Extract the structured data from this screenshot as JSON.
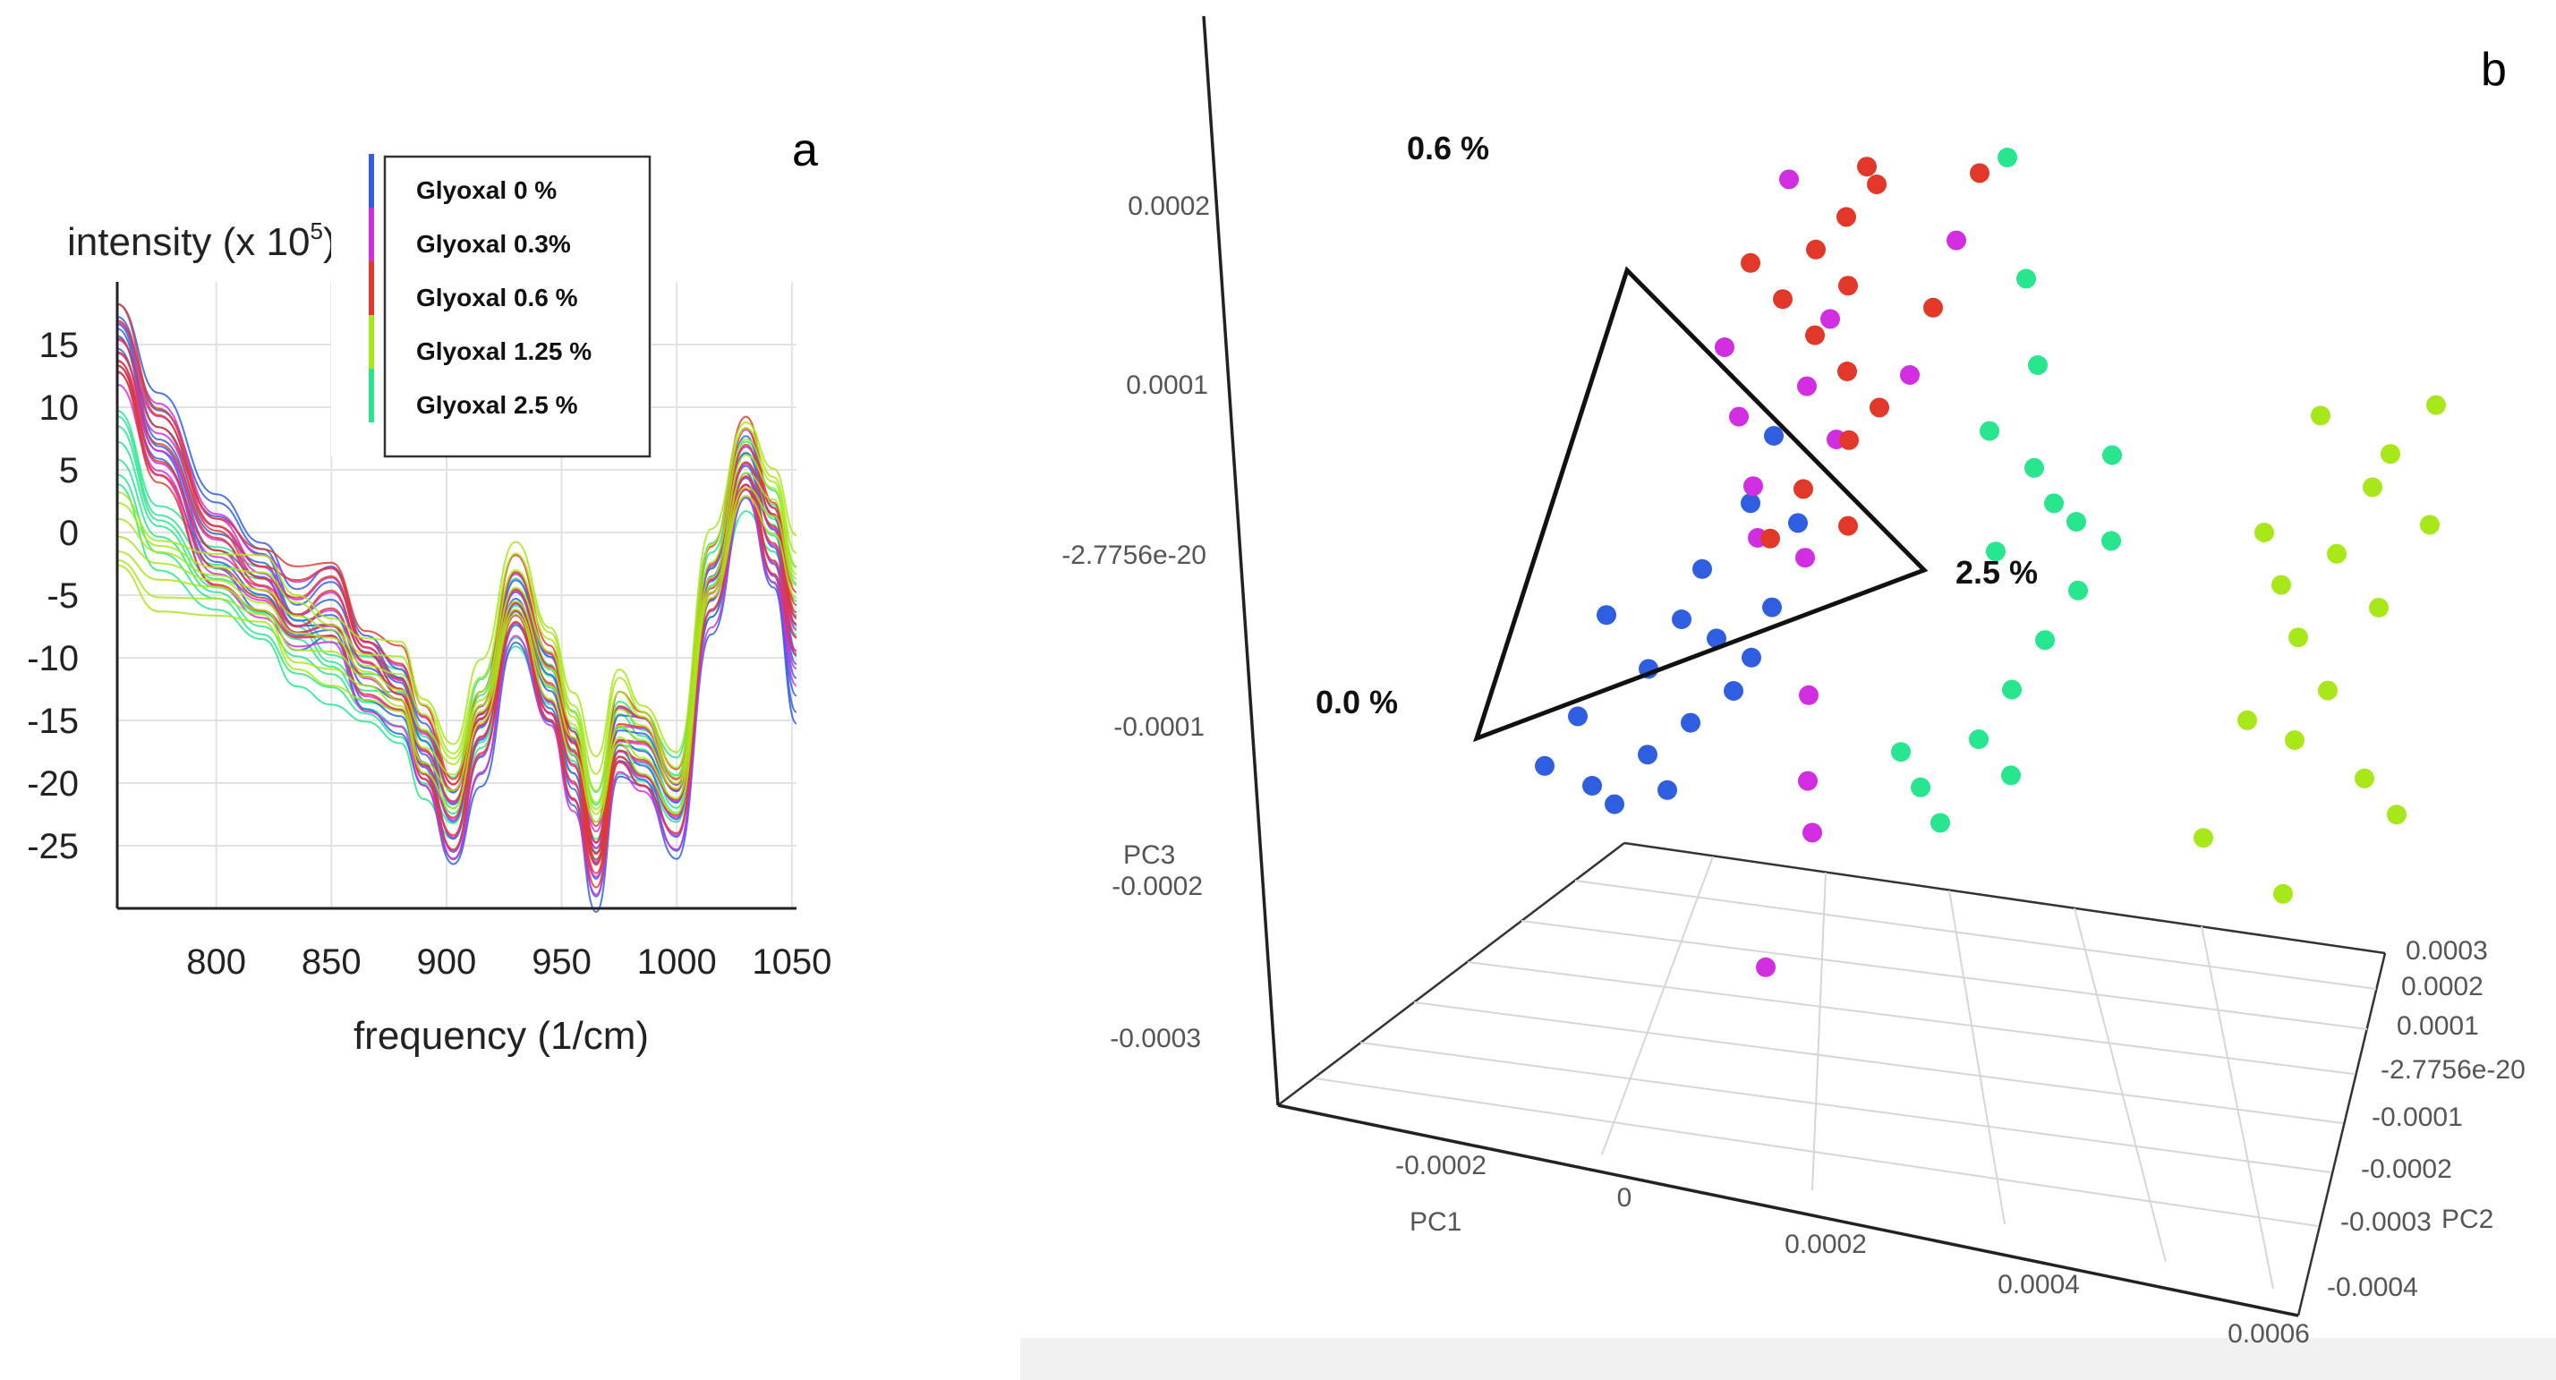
{
  "colors": {
    "glyoxal_0": "#2f5fe0",
    "glyoxal_03": "#d02ee0",
    "glyoxal_06": "#e2382a",
    "glyoxal_125": "#a8e81a",
    "glyoxal_25": "#27e68e"
  },
  "chart_data": [
    {
      "panel": "a",
      "type": "line",
      "ylabel_base": "intensity (x 10",
      "ylabel_exp": "5",
      "ylabel_tail": ")",
      "xlabel": "frequency (1/cm)",
      "xlim": [
        757,
        1052
      ],
      "ylim": [
        -30,
        20
      ],
      "xticks": [
        800,
        850,
        900,
        950,
        1000,
        1050
      ],
      "yticks": [
        15,
        10,
        5,
        0,
        -5,
        -10,
        -15,
        -20,
        -25
      ],
      "series": [
        {
          "name": "Glyoxal 0 %",
          "color_key": "glyoxal_0",
          "x": [
            757,
            775,
            800,
            820,
            835,
            850,
            865,
            880,
            890,
            903,
            915,
            930,
            945,
            955,
            965,
            975,
            985,
            1000,
            1015,
            1030,
            1042,
            1052
          ],
          "y": [
            16,
            8,
            0,
            -3,
            -7,
            -6,
            -11,
            -13,
            -18,
            -24,
            -17,
            -6,
            -13,
            -19,
            -27,
            -17,
            -18,
            -23,
            -5,
            5,
            -2,
            -12
          ]
        },
        {
          "name": "Glyoxal 0.3%",
          "color_key": "glyoxal_03",
          "x": [
            757,
            775,
            800,
            820,
            835,
            850,
            865,
            880,
            890,
            903,
            915,
            930,
            945,
            955,
            965,
            975,
            985,
            1000,
            1015,
            1030,
            1042,
            1052
          ],
          "y": [
            14,
            7,
            -1,
            -4,
            -7,
            -6,
            -11,
            -13,
            -18,
            -23,
            -16,
            -6,
            -13,
            -19,
            -26,
            -17,
            -18,
            -22,
            -5,
            5,
            -1,
            -9
          ]
        },
        {
          "name": "Glyoxal 0.6 %",
          "color_key": "glyoxal_06",
          "x": [
            757,
            775,
            800,
            820,
            835,
            850,
            865,
            880,
            890,
            903,
            915,
            930,
            945,
            955,
            965,
            975,
            985,
            1000,
            1015,
            1030,
            1042,
            1052
          ],
          "y": [
            15,
            7,
            -1,
            -4,
            -6,
            -5,
            -10,
            -12,
            -17,
            -22,
            -15,
            -5,
            -12,
            -18,
            -26,
            -16,
            -17,
            -21,
            -4,
            6,
            0,
            -7
          ]
        },
        {
          "name": "Glyoxal 1.25 %",
          "color_key": "glyoxal_125",
          "x": [
            757,
            775,
            800,
            820,
            835,
            850,
            865,
            880,
            890,
            903,
            915,
            930,
            945,
            955,
            965,
            975,
            985,
            1000,
            1015,
            1030,
            1042,
            1052
          ],
          "y": [
            0,
            -3,
            -4,
            -5,
            -8,
            -9,
            -11,
            -12,
            -16,
            -19,
            -13,
            -4,
            -10,
            -15,
            -21,
            -14,
            -16,
            -20,
            -3,
            6,
            3,
            -3
          ]
        },
        {
          "name": "Glyoxal 2.5 %",
          "color_key": "glyoxal_25",
          "x": [
            757,
            775,
            800,
            820,
            835,
            850,
            865,
            880,
            890,
            903,
            915,
            930,
            945,
            955,
            965,
            975,
            985,
            1000,
            1015,
            1030,
            1042,
            1052
          ],
          "y": [
            7,
            0,
            -4,
            -6,
            -9,
            -11,
            -13,
            -14,
            -18,
            -22,
            -15,
            -6,
            -12,
            -17,
            -24,
            -16,
            -17,
            -21,
            -4,
            5,
            1,
            -6
          ]
        }
      ],
      "legend": [
        "Glyoxal 0 %",
        "Glyoxal 0.3%",
        "Glyoxal 0.6 %",
        "Glyoxal 1.25 %",
        "Glyoxal 2.5 %"
      ]
    },
    {
      "panel": "b",
      "type": "scatter",
      "subtype": "3d-pca",
      "axes": {
        "x": "PC1",
        "y": "PC2",
        "z": "PC3"
      },
      "pc3_ticks": [
        "0.0002",
        "0.0001",
        "-2.7756e-20",
        "-0.0001",
        "-0.0002",
        "-0.0003"
      ],
      "pc1_ticks": [
        "-0.0002",
        "0",
        "0.0002",
        "0.0004",
        "0.0006"
      ],
      "pc2_ticks": [
        "0.0003",
        "0.0002",
        "0.0001",
        "-2.7756e-20",
        "-0.0001",
        "-0.0002",
        "-0.0003",
        "-0.0004"
      ],
      "triangle_labels": [
        "0.6 %",
        "2.5 %",
        "0.0 %"
      ],
      "groups": [
        {
          "name": "Glyoxal 0 %",
          "color_key": "glyoxal_0",
          "points": [
            [
              0.0,
              -0.00012
            ],
            [
              3e-05,
              -5e-05
            ],
            [
              5e-05,
              -2e-05
            ],
            [
              6e-05,
              1e-05
            ],
            [
              -2e-05,
              -8e-05
            ],
            [
              8e-05,
              -3e-05
            ],
            [
              0.0001,
              -6e-05
            ],
            [
              4e-05,
              -0.0001
            ],
            [
              0.00012,
              -1e-05
            ],
            [
              -4e-05,
              -0.00011
            ],
            [
              7e-05,
              -8e-05
            ],
            [
              0.00011,
              -4e-05
            ],
            [
              2e-05,
              -0.00013
            ],
            [
              0.00013,
              4e-05
            ],
            [
              9e-05,
              5e-05
            ],
            [
              -1e-05,
              -2e-05
            ],
            [
              6e-05,
              -0.00012
            ],
            [
              0.0001,
              9e-05
            ]
          ]
        },
        {
          "name": "Glyoxal 0.3%",
          "color_key": "glyoxal_03",
          "points": [
            [
              8e-05,
              0.00024
            ],
            [
              5e-05,
              0.00014
            ],
            [
              7e-05,
              0.0001
            ],
            [
              9e-05,
              6e-05
            ],
            [
              0.00012,
              0.00012
            ],
            [
              0.00013,
              0.00016
            ],
            [
              0.00015,
              9e-05
            ],
            [
              0.00014,
              2e-05
            ],
            [
              0.00016,
              -6e-05
            ],
            [
              0.00017,
              -0.00011
            ],
            [
              0.00018,
              -0.00014
            ],
            [
              0.0002,
              0.00013
            ],
            [
              0.00022,
              0.00021
            ],
            [
              0.00016,
              -0.00022
            ],
            [
              0.0001,
              3e-05
            ]
          ]
        },
        {
          "name": "Glyoxal 0.6 %",
          "color_key": "glyoxal_06",
          "points": [
            [
              6e-05,
              0.00019
            ],
            [
              9e-05,
              0.00017
            ],
            [
              0.00011,
              0.0002
            ],
            [
              0.00012,
              0.00015
            ],
            [
              0.00013,
              0.00022
            ],
            [
              0.00014,
              0.00018
            ],
            [
              0.00015,
              0.00013
            ],
            [
              0.00016,
              9e-05
            ],
            [
              0.00013,
              6e-05
            ],
            [
              0.00011,
              3e-05
            ],
            [
              0.00017,
              4e-05
            ],
            [
              0.00018,
              0.00011
            ],
            [
              0.00021,
              0.00017
            ],
            [
              0.00023,
              0.00025
            ],
            [
              0.00014,
              0.00025
            ],
            [
              0.00015,
              0.00024
            ]
          ]
        },
        {
          "name": "Glyoxal 1.25 %",
          "color_key": "glyoxal_125",
          "points": [
            [
              0.0005,
              5e-05
            ],
            [
              0.00052,
              2e-05
            ],
            [
              0.00054,
              -1e-05
            ],
            [
              0.00056,
              4e-05
            ],
            [
              0.00058,
              8e-05
            ],
            [
              0.0006,
              1e-05
            ],
            [
              0.00057,
              -4e-05
            ],
            [
              0.00055,
              -7e-05
            ],
            [
              0.00061,
              -9e-05
            ],
            [
              0.00063,
              6e-05
            ],
            [
              0.00059,
              0.0001
            ],
            [
              0.00062,
              0.00013
            ],
            [
              0.00053,
              0.00012
            ],
            [
              0.00051,
              -6e-05
            ],
            [
              0.00064,
              -0.00011
            ],
            [
              0.00049,
              -0.00013
            ],
            [
              0.00056,
              -0.00016
            ]
          ]
        },
        {
          "name": "Glyoxal 2.5 %",
          "color_key": "glyoxal_25",
          "points": [
            [
              0.00025,
              0.00026
            ],
            [
              0.00028,
              0.00019
            ],
            [
              0.0003,
              0.00014
            ],
            [
              0.00027,
              0.0001
            ],
            [
              0.00031,
              8e-05
            ],
            [
              0.00033,
              6e-05
            ],
            [
              0.00029,
              3e-05
            ],
            [
              0.00035,
              5e-05
            ],
            [
              0.00036,
              1e-05
            ],
            [
              0.00034,
              -2e-05
            ],
            [
              0.00032,
              -5e-05
            ],
            [
              0.0003,
              -8e-05
            ],
            [
              0.00026,
              -0.00011
            ],
            [
              0.00028,
              -0.00013
            ],
            [
              0.00024,
              -9e-05
            ],
            [
              0.00037,
              9e-05
            ],
            [
              0.00038,
              4e-05
            ],
            [
              0.00033,
              -0.0001
            ]
          ]
        }
      ]
    }
  ],
  "panel_a_letter": "a",
  "panel_b_letter": "b"
}
